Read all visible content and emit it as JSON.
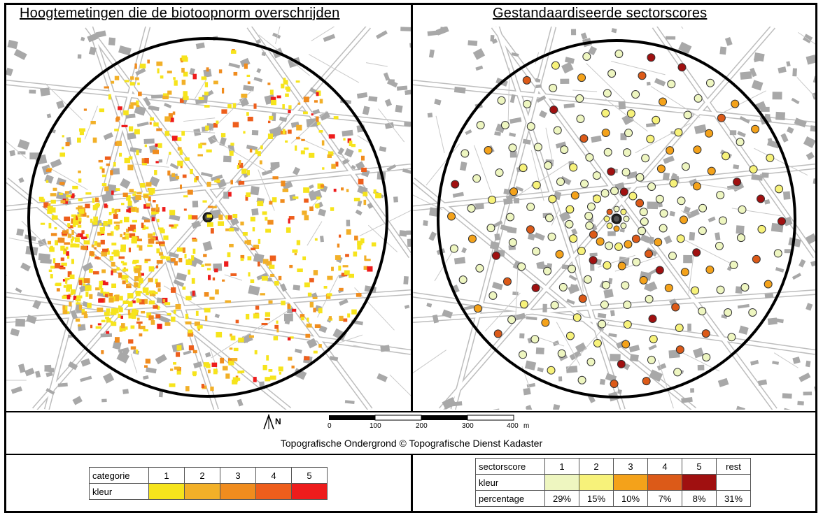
{
  "left_panel": {
    "title": "Hoogtemetingen die de biotoopnorm overschrijden"
  },
  "right_panel": {
    "title": "Gestandaardiseerde sectorscores"
  },
  "north_label": "N",
  "scale_bar": {
    "ticks": [
      "0",
      "100",
      "200",
      "300",
      "400"
    ],
    "unit": "m"
  },
  "credit": "Topografische Ondergrond © Topografische Dienst Kadaster",
  "legend_categories": {
    "header_row": "categorie",
    "color_row": "kleur",
    "labels": [
      "1",
      "2",
      "3",
      "4",
      "5"
    ],
    "colors": [
      "#f6e41c",
      "#f2b028",
      "#f08c1e",
      "#ee5e1c",
      "#ee1c1c"
    ]
  },
  "legend_sectors": {
    "header_row": "sectorscore",
    "color_row": "kleur",
    "percentage_row": "percentage",
    "labels": [
      "1",
      "2",
      "3",
      "4",
      "5",
      "rest"
    ],
    "colors": [
      "#eef6c0",
      "#f7f27a",
      "#f4a21a",
      "#dc5a18",
      "#a01010",
      "#ffffff"
    ],
    "percentages": [
      "29%",
      "15%",
      "10%",
      "7%",
      "8%",
      "31%"
    ]
  }
}
